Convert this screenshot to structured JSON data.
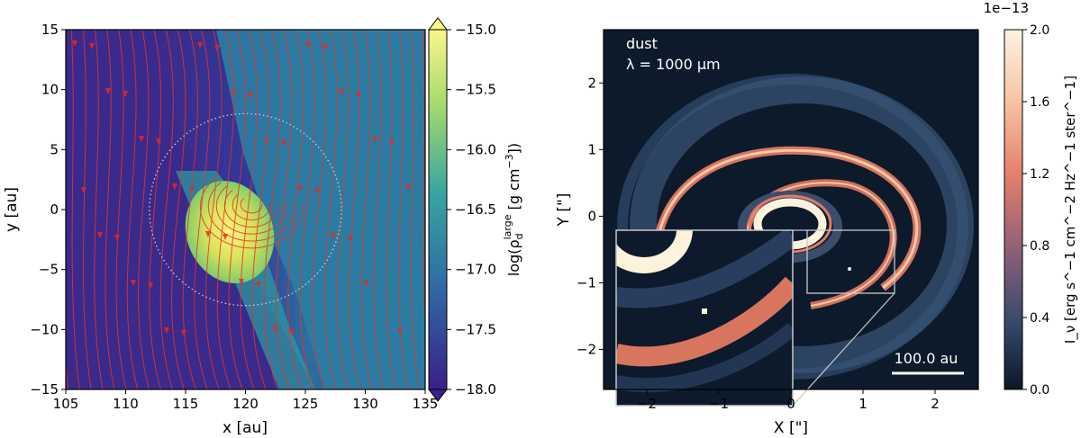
{
  "chart_data": [
    {
      "type": "heatmap",
      "title": "",
      "xlabel": "x [au]",
      "ylabel": "y [au]",
      "xlim": [
        105,
        135
      ],
      "ylim": [
        -15,
        15
      ],
      "xticks": [
        "105",
        "110",
        "115",
        "120",
        "125",
        "130",
        "135"
      ],
      "yticks": [
        "15",
        "10",
        "5",
        "0",
        "−5",
        "−10",
        "−15"
      ],
      "colorbar": {
        "label": "log(ρ_d^large [g cm^−3])",
        "label_main": "log(ρ",
        "label_sub": "d",
        "label_sup": "large",
        "label_tail": " [g cm",
        "label_exp": "−3",
        "label_end": "])",
        "range": [
          -18.0,
          -15.0
        ],
        "ticks": [
          "−15.0",
          "−15.5",
          "−16.0",
          "−16.5",
          "−17.0",
          "−17.5",
          "−18.0"
        ],
        "colormap": "viridis-like",
        "extend": "both"
      },
      "overlays": [
        "red magnetic-field streamlines with arrowheads",
        "dotted grey circle around x=120, y=0, radius 8 au"
      ],
      "dense_core": {
        "x": 120.5,
        "y": 0.5,
        "value": -15.1
      },
      "colors": {
        "streamline": "#e8322a",
        "circle": "#c8c8c8",
        "background_low": "#3b2a8c",
        "mid": "#2a7fa0",
        "high": "#f4f08a"
      }
    },
    {
      "type": "heatmap",
      "title": "",
      "annotation_line1": "dust",
      "annotation_line2": "λ = 1000 μm",
      "xlabel": "X [\"]",
      "ylabel": "Y [\"]",
      "xlim": [
        -2.6,
        2.6
      ],
      "ylim": [
        -2.6,
        2.8
      ],
      "xticks": [
        "−2",
        "−1",
        "0",
        "1",
        "2"
      ],
      "yticks": [
        "2",
        "1",
        "0",
        "−1",
        "−2"
      ],
      "colorbar": {
        "label": "I_ν [erg s^−1 cm^−2 Hz^−1 ster^−1]",
        "offset": "1e−13",
        "range": [
          0.0,
          2.0
        ],
        "ticks": [
          "2.0",
          "1.6",
          "1.2",
          "0.8",
          "0.4",
          "0.0"
        ],
        "colormap": "dark-blue to salmon to cream"
      },
      "scalebar_label": "100.0 au",
      "inset": {
        "zoom_box_x": [
          0.2,
          1.5
        ],
        "zoom_box_y": [
          -1.3,
          0.0
        ],
        "inset_x": [
          -2.6,
          0.0
        ],
        "inset_y": [
          -2.6,
          0.0
        ]
      },
      "colors": {
        "background": "#0d1b2e",
        "ring": "#e2775f",
        "core": "#fdf3dc",
        "outer_halo": "#3a5577"
      }
    }
  ]
}
